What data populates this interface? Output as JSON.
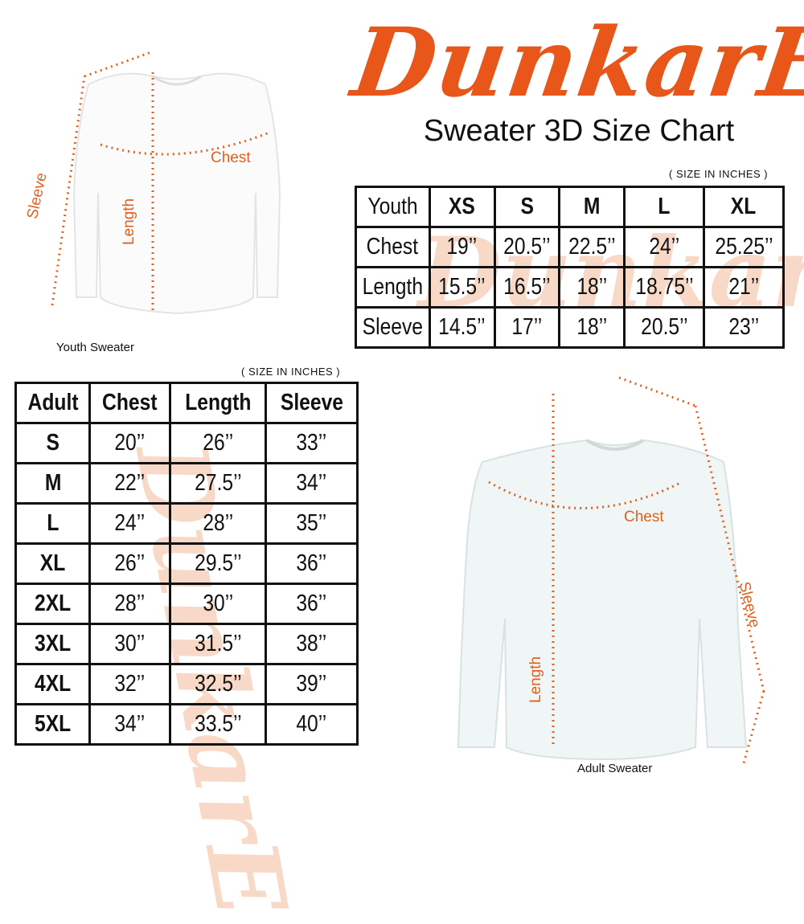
{
  "brand": {
    "logo_text": "DunkarE",
    "color": "#e8561a"
  },
  "title": "Sweater 3D Size Chart",
  "youth_table": {
    "unit_note": "( SIZE IN INCHES )",
    "headers": [
      "Youth",
      "XS",
      "S",
      "M",
      "L",
      "XL"
    ],
    "rows": [
      [
        "Chest",
        "19’’",
        "20.5’’",
        "22.5’’",
        "24’’",
        "25.25’’"
      ],
      [
        "Length",
        "15.5’’",
        "16.5’’",
        "18’’",
        "18.75’’",
        "21’’"
      ],
      [
        "Sleeve",
        "14.5’’",
        "17’’",
        "18’’",
        "20.5’’",
        "23’’"
      ]
    ]
  },
  "adult_table": {
    "unit_note": "( SIZE IN INCHES )",
    "headers": [
      "Adult",
      "Chest",
      "Length",
      "Sleeve"
    ],
    "rows": [
      [
        "S",
        "20’’",
        "26’’",
        "33’’"
      ],
      [
        "M",
        "22’’",
        "27.5’’",
        "34’’"
      ],
      [
        "L",
        "24’’",
        "28’’",
        "35’’"
      ],
      [
        "XL",
        "26’’",
        "29.5’’",
        "36’’"
      ],
      [
        "2XL",
        "28’’",
        "30’’",
        "36’’"
      ],
      [
        "3XL",
        "30’’",
        "31.5’’",
        "38’’"
      ],
      [
        "4XL",
        "32’’",
        "32.5’’",
        "39’’"
      ],
      [
        "5XL",
        "34’’",
        "33.5’’",
        "40’’"
      ]
    ]
  },
  "youth_sweater": {
    "caption": "Youth Sweater",
    "labels": {
      "chest": "Chest",
      "length": "Length",
      "sleeve": "Sleeve"
    }
  },
  "adult_sweater": {
    "caption": "Adult Sweater",
    "labels": {
      "chest": "Chest",
      "length": "Length",
      "sleeve": "Sleeve"
    }
  },
  "measure_color": "#e0611f"
}
